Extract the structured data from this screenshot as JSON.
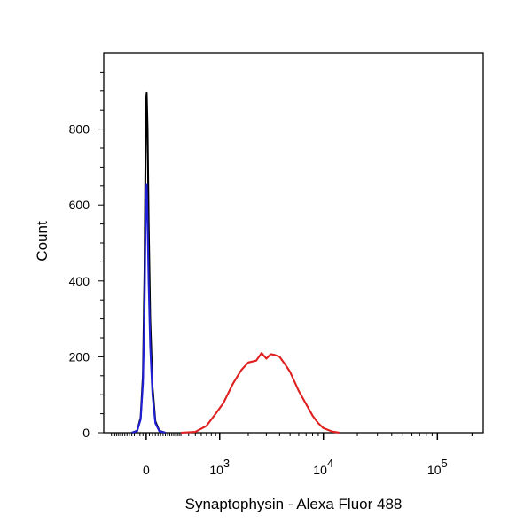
{
  "chart_data": {
    "type": "line",
    "title": "",
    "xlabel": "Synaptophysin - Alexa Fluor 488",
    "ylabel": "Count",
    "x_scale": "biexponential",
    "x_ticks": [
      {
        "value": 0,
        "base": "0",
        "exp": ""
      },
      {
        "value": 1000,
        "base": "10",
        "exp": "3"
      },
      {
        "value": 10000,
        "base": "10",
        "exp": "4"
      },
      {
        "value": 100000,
        "base": "10",
        "exp": "5"
      }
    ],
    "y_ticks": [
      0,
      200,
      400,
      600,
      800
    ],
    "ylim": [
      0,
      1000
    ],
    "grid": false,
    "legend": "none",
    "series": [
      {
        "color": "#000000",
        "points": [
          [
            -100,
            0
          ],
          [
            -60,
            5
          ],
          [
            -35,
            40
          ],
          [
            -20,
            150
          ],
          [
            -10,
            420
          ],
          [
            -4,
            720
          ],
          [
            0,
            880
          ],
          [
            3,
            895
          ],
          [
            8,
            800
          ],
          [
            15,
            560
          ],
          [
            25,
            300
          ],
          [
            40,
            120
          ],
          [
            60,
            30
          ],
          [
            90,
            5
          ],
          [
            140,
            0
          ]
        ]
      },
      {
        "color": "#1f1fd6",
        "points": [
          [
            -100,
            0
          ],
          [
            -60,
            4
          ],
          [
            -35,
            35
          ],
          [
            -20,
            130
          ],
          [
            -10,
            330
          ],
          [
            -4,
            540
          ],
          [
            0,
            640
          ],
          [
            3,
            655
          ],
          [
            8,
            560
          ],
          [
            15,
            400
          ],
          [
            25,
            230
          ],
          [
            40,
            100
          ],
          [
            60,
            25
          ],
          [
            90,
            4
          ],
          [
            140,
            0
          ]
        ]
      },
      {
        "color": "#e02020",
        "points": [
          [
            300,
            0
          ],
          [
            500,
            2
          ],
          [
            700,
            18
          ],
          [
            900,
            50
          ],
          [
            1100,
            78
          ],
          [
            1400,
            130
          ],
          [
            1700,
            165
          ],
          [
            2000,
            185
          ],
          [
            2400,
            190
          ],
          [
            2700,
            210
          ],
          [
            3000,
            195
          ],
          [
            3300,
            207
          ],
          [
            3600,
            205
          ],
          [
            4000,
            200
          ],
          [
            4500,
            180
          ],
          [
            5000,
            160
          ],
          [
            6000,
            110
          ],
          [
            7000,
            75
          ],
          [
            8000,
            45
          ],
          [
            9000,
            25
          ],
          [
            10000,
            12
          ],
          [
            12000,
            3
          ],
          [
            14000,
            0
          ]
        ]
      }
    ]
  }
}
